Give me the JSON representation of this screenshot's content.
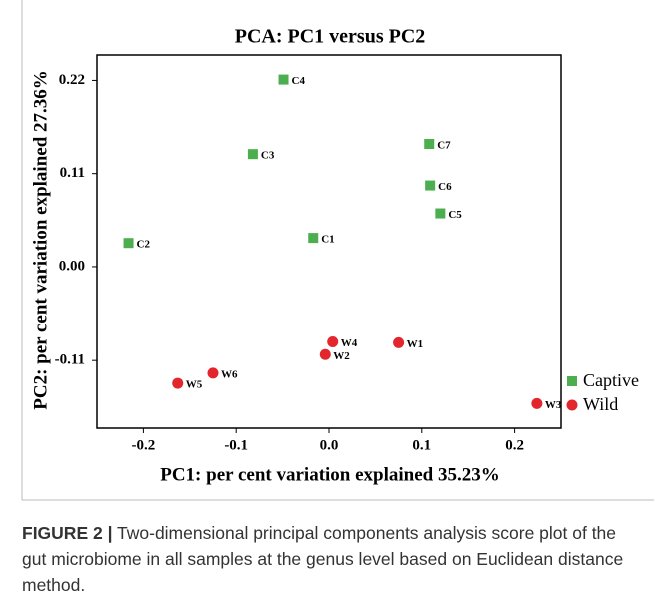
{
  "chart_data": {
    "type": "scatter",
    "title": "PCA: PC1 versus PC2",
    "xlabel": "PC1: per cent variation explained 35.23%",
    "ylabel": "PC2: per cent variation explained 27.36%",
    "xlim": [
      -0.25,
      0.25
    ],
    "xticks": [
      -0.2,
      -0.1,
      {
        "value": 0,
        "label": "0.0"
      },
      0.1,
      0.2
    ],
    "ylim": [
      -0.19,
      0.25
    ],
    "yticks": [
      -0.11,
      {
        "value": 0,
        "label": "0.00"
      },
      0.11,
      0.22
    ],
    "legend": "lower right",
    "series": [
      {
        "name": "Captive",
        "color": "#4cae4f",
        "marker": "square",
        "labels": [
          "C1",
          "C2",
          "C3",
          "C4",
          "C5",
          "C6",
          "C7"
        ],
        "x": [
          -0.017,
          -0.216,
          -0.082,
          -0.049,
          0.12,
          0.109,
          0.108
        ],
        "values": [
          0.034,
          0.028,
          0.133,
          0.221,
          0.063,
          0.096,
          0.145
        ]
      },
      {
        "name": "Wild",
        "color": "#e3262c",
        "marker": "circle",
        "labels": [
          "W1",
          "W2",
          "W3",
          "W4",
          "W5",
          "W6"
        ],
        "x": [
          0.075,
          -0.004,
          0.224,
          0.004,
          -0.163,
          -0.125
        ],
        "values": [
          -0.089,
          -0.103,
          -0.161,
          -0.088,
          -0.137,
          -0.125
        ]
      }
    ]
  },
  "caption": {
    "label": "FIGURE 2 |",
    "text": "Two-dimensional principal components analysis score plot of the gut microbiome in all samples at the genus level based on Euclidean distance method."
  }
}
